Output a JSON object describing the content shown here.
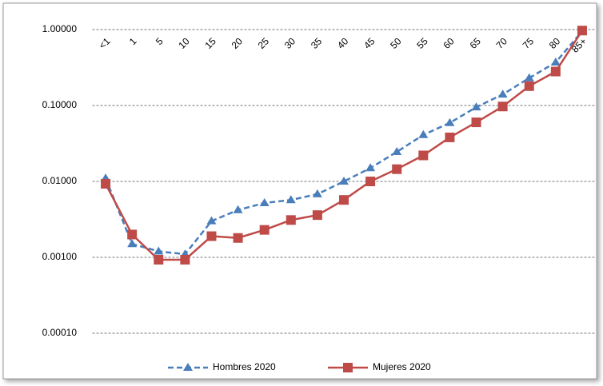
{
  "chart_data": {
    "type": "line",
    "categories": [
      "<1",
      "1",
      "5",
      "10",
      "15",
      "20",
      "25",
      "30",
      "35",
      "40",
      "45",
      "50",
      "55",
      "60",
      "65",
      "70",
      "75",
      "80",
      "85+"
    ],
    "series": [
      {
        "name": "Hombres 2020",
        "color": "#4a7ebb",
        "dash": true,
        "marker": "triangle",
        "values": [
          0.011,
          0.0015,
          0.0012,
          0.0011,
          0.003,
          0.0042,
          0.0052,
          0.0057,
          0.0068,
          0.01,
          0.015,
          0.0245,
          0.041,
          0.059,
          0.095,
          0.14,
          0.23,
          0.37,
          0.95
        ]
      },
      {
        "name": "Mujeres 2020",
        "color": "#be4b48",
        "dash": false,
        "marker": "square",
        "values": [
          0.0093,
          0.002,
          0.00093,
          0.00093,
          0.0019,
          0.0018,
          0.0023,
          0.0031,
          0.0036,
          0.0057,
          0.01,
          0.0145,
          0.022,
          0.038,
          0.06,
          0.097,
          0.18,
          0.28,
          0.97
        ]
      }
    ],
    "ylim": [
      0.0001,
      1
    ],
    "log_y": true,
    "grid": true,
    "legend": "bottom",
    "yticks": [
      {
        "value": 0.0001,
        "label": "0.00010"
      },
      {
        "value": 0.001,
        "label": "0.00100"
      },
      {
        "value": 0.01,
        "label": "0.01000"
      },
      {
        "value": 0.1,
        "label": "0.10000"
      },
      {
        "value": 1,
        "label": "1.00000"
      }
    ]
  }
}
